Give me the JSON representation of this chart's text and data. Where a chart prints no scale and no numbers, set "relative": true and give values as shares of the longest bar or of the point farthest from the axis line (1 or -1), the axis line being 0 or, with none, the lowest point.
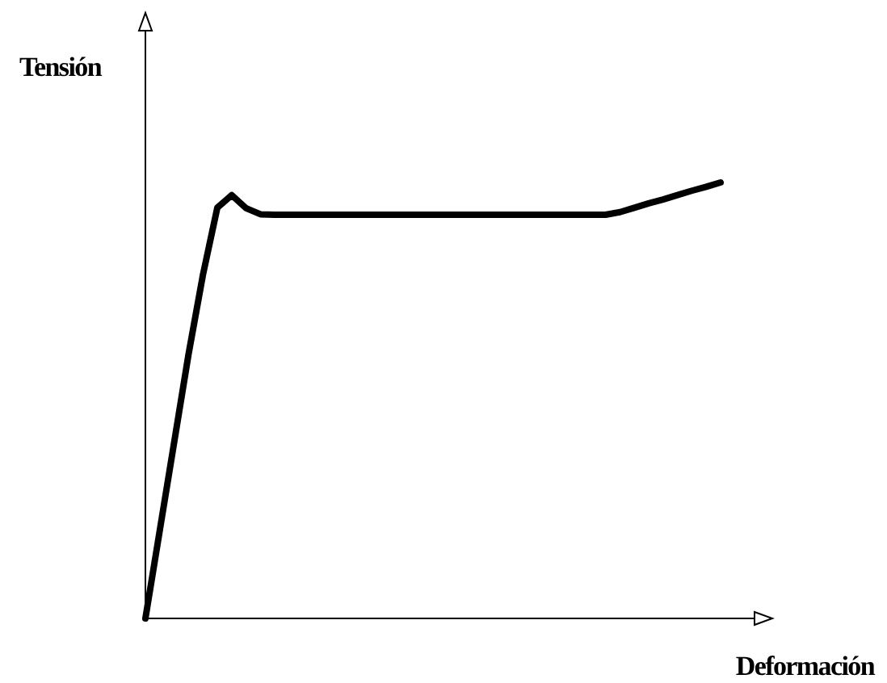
{
  "chart_data": {
    "type": "line",
    "relative": true,
    "ylabel": "Tensión",
    "xlabel": "Deformación",
    "categories": [
      null,
      null,
      null,
      null,
      null,
      null,
      null,
      null,
      null,
      null,
      null,
      null,
      null,
      null,
      null,
      null,
      null,
      null,
      null,
      null,
      null,
      null,
      null,
      null,
      null,
      null,
      null,
      null,
      null,
      null,
      null,
      null,
      null,
      null,
      null,
      null,
      null,
      null,
      null,
      null,
      null
    ],
    "series": [
      {
        "color": "#000000",
        "values": [
          0,
          0.202,
          0.404,
          0.606,
          0.788,
          0.942,
          0.971,
          0.941,
          0.927,
          0.926,
          0.926,
          0.926,
          0.926,
          0.926,
          0.926,
          0.926,
          0.926,
          0.926,
          0.926,
          0.926,
          0.926,
          0.926,
          0.926,
          0.926,
          0.926,
          0.926,
          0.926,
          0.926,
          0.926,
          0.926,
          0.926,
          0.926,
          0.926,
          0.932,
          0.942,
          0.952,
          0.961,
          0.971,
          0.981,
          0.99,
          1
        ]
      }
    ],
    "marker": "none",
    "line_style": "solid"
  }
}
